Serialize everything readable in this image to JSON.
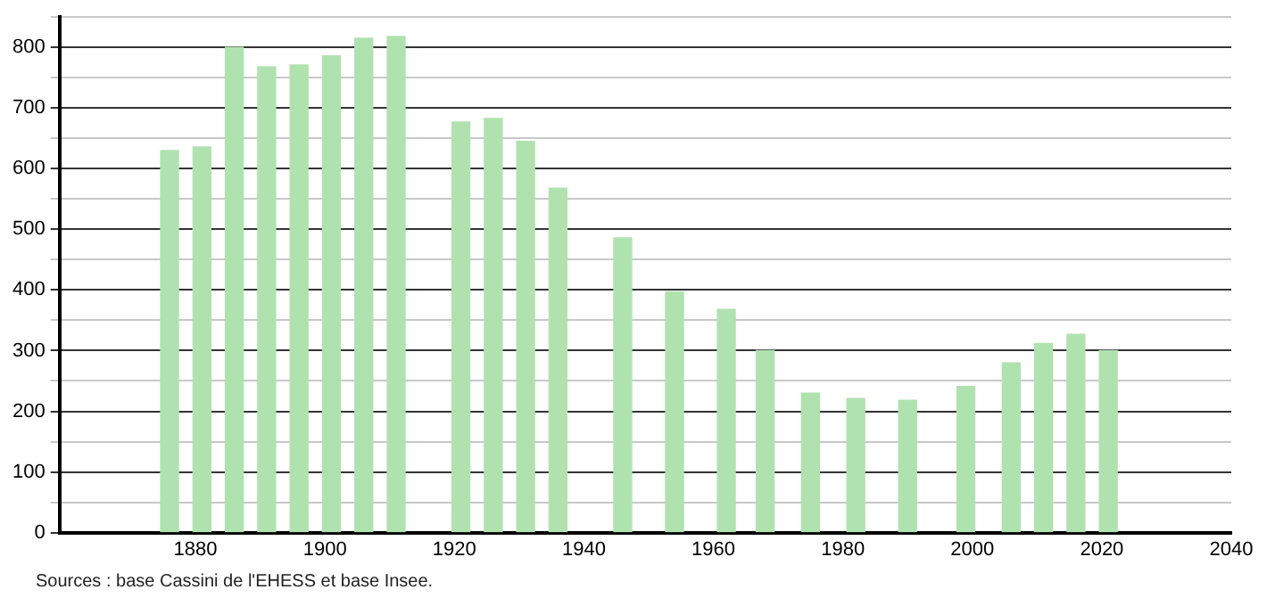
{
  "chart_data": {
    "type": "bar",
    "x": [
      1876,
      1881,
      1886,
      1891,
      1896,
      1901,
      1906,
      1911,
      1921,
      1926,
      1931,
      1936,
      1946,
      1954,
      1962,
      1968,
      1975,
      1982,
      1990,
      1999,
      2006,
      2011,
      2016,
      2021
    ],
    "values": [
      630,
      636,
      800,
      768,
      771,
      786,
      815,
      818,
      677,
      683,
      645,
      568,
      486,
      397,
      368,
      300,
      230,
      221,
      218,
      241,
      280,
      312,
      327,
      300
    ],
    "color": "#b0e2b0",
    "xlim": [
      1859,
      2040
    ],
    "xticks": [
      1880,
      1900,
      1920,
      1940,
      1960,
      1980,
      2000,
      2020,
      2040
    ],
    "ylim": [
      0,
      850
    ],
    "yticks": [
      0,
      {
        "value": 50,
        "label": null
      },
      100,
      {
        "value": 150,
        "label": null
      },
      200,
      {
        "value": 250,
        "label": null
      },
      300,
      {
        "value": 350,
        "label": null
      },
      400,
      {
        "value": 450,
        "label": null
      },
      500,
      {
        "value": 550,
        "label": null
      },
      600,
      {
        "value": 650,
        "label": null
      },
      700,
      {
        "value": 750,
        "label": null
      },
      800,
      {
        "value": 850,
        "label": null
      }
    ],
    "grid": "y",
    "annotations": [
      "Sources : base Cassini de l'EHESS et base Insee."
    ]
  }
}
